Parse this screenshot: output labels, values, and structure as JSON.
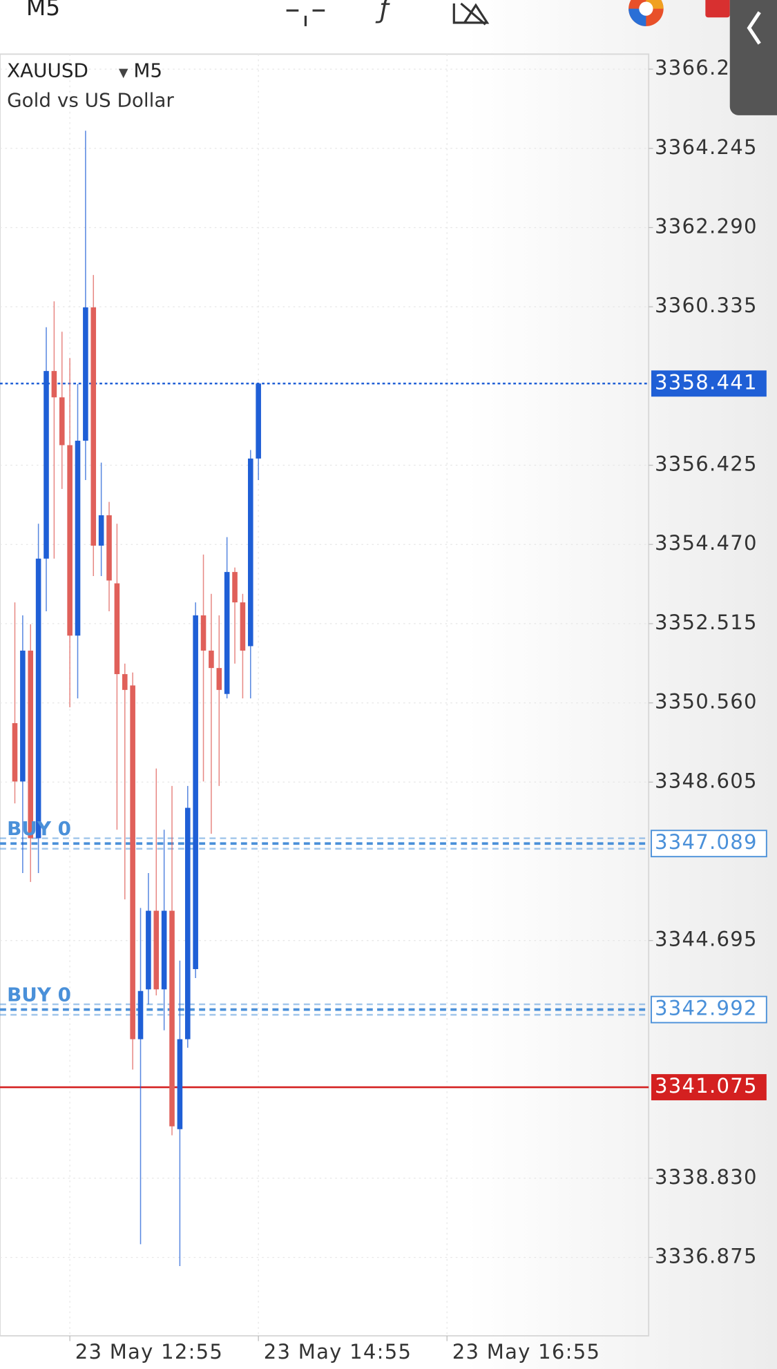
{
  "header": {
    "timeframe": "M5"
  },
  "chart_data": {
    "type": "candlestick",
    "symbol": "XAUUSD",
    "timeframe": "M5",
    "description": "Gold vs US Dollar",
    "up_color": "#1f5fd6",
    "down_color": "#e0605a",
    "grid": true,
    "categories": [
      null,
      null,
      null,
      null,
      null,
      null,
      null,
      "23 May 12:55",
      null,
      null,
      null,
      null,
      null,
      null,
      null,
      null,
      null,
      null,
      null,
      null,
      null,
      null,
      null,
      null,
      null,
      null,
      null,
      null,
      null,
      null,
      null,
      "23 May 14:55",
      null,
      null,
      null,
      null,
      null,
      null,
      null,
      null,
      null,
      null,
      null,
      null,
      null,
      null,
      null,
      null,
      null,
      null,
      null,
      null,
      null,
      null,
      null,
      "23 May 16:55"
    ],
    "open": [
      3350.06,
      3348.62,
      3351.85,
      3347.22,
      3354.12,
      3358.75,
      3358.1,
      3356.92,
      3352.22,
      3357.03,
      3360.32,
      3354.44,
      3355.19,
      3353.51,
      3351.27,
      3350.99,
      3342.26,
      3343.49,
      3345.43,
      3343.49,
      3345.43,
      3340.04,
      3342.26,
      3343.99,
      3352.72,
      3351.85,
      3351.42,
      3350.78,
      3353.79,
      3353.04,
      3351.96,
      3356.59,
      null,
      null,
      null,
      null,
      null,
      null,
      null,
      null,
      null,
      null,
      null,
      null,
      null,
      null,
      null,
      null,
      null,
      null,
      null,
      null,
      null,
      null,
      null,
      null
    ],
    "high": [
      3353.04,
      3352.72,
      3352.5,
      3354.98,
      3359.83,
      3360.47,
      3359.72,
      3359.07,
      3358.43,
      3364.68,
      3361.12,
      3356.49,
      3355.52,
      3354.98,
      3351.53,
      3351.31,
      3345.5,
      3346.36,
      3348.94,
      3347.43,
      3348.51,
      3344.2,
      3348.51,
      3353.04,
      3354.22,
      3353.25,
      3352.72,
      3354.65,
      3353.9,
      3353.25,
      3356.8,
      3358.441,
      null,
      null,
      null,
      null,
      null,
      null,
      null,
      null,
      null,
      null,
      null,
      null,
      null,
      null,
      null,
      null,
      null,
      null,
      null,
      null,
      null,
      null,
      null,
      null
    ],
    "low": [
      3348.08,
      3346.36,
      3346.14,
      3346.36,
      3352.82,
      3354.12,
      3355.84,
      3350.45,
      3350.67,
      3356.06,
      3353.69,
      3353.69,
      3352.82,
      3347.43,
      3345.71,
      3341.51,
      3337.2,
      3343.12,
      3343.34,
      3342.48,
      3339.89,
      3336.66,
      3342.05,
      3343.77,
      3348.62,
      3347.33,
      3348.51,
      3350.67,
      3351.53,
      3350.67,
      3350.67,
      3356.06,
      null,
      null,
      null,
      null,
      null,
      null,
      null,
      null,
      null,
      null,
      null,
      null,
      null,
      null,
      null,
      null,
      null,
      null,
      null,
      null,
      null,
      null,
      null,
      null
    ],
    "close": [
      3348.62,
      3351.85,
      3347.22,
      3354.12,
      3358.75,
      3358.1,
      3356.92,
      3352.22,
      3357.03,
      3360.32,
      3354.44,
      3355.19,
      3353.58,
      3351.27,
      3350.88,
      3342.26,
      3343.45,
      3345.43,
      3343.49,
      3345.43,
      3340.11,
      3342.26,
      3347.97,
      3352.72,
      3351.85,
      3351.42,
      3350.88,
      3353.79,
      3353.04,
      3351.85,
      3356.59,
      3358.441,
      null,
      null,
      null,
      null,
      null,
      null,
      null,
      null,
      null,
      null,
      null,
      null,
      null,
      null,
      null,
      null,
      null,
      null,
      null,
      null,
      null,
      null,
      null,
      null
    ],
    "ylim": [
      3334.94,
      3366.57
    ],
    "yticks": [
      3366.2,
      3364.245,
      {
        "value": 3362.29,
        "label": "3362.290"
      },
      3360.335,
      3356.425,
      {
        "value": 3354.47,
        "label": "3354.470"
      },
      3352.515,
      {
        "value": 3350.56,
        "label": "3350.560"
      },
      3348.605,
      3344.695,
      {
        "value": 3338.83,
        "label": "3338.830"
      },
      3336.875
    ],
    "price_lines": [
      {
        "value": 3358.441,
        "color": "#1f5fd6",
        "style": "dotted"
      },
      {
        "value": 3347.089,
        "text": "BUY 0",
        "color": "#4a90d9",
        "style": "dashed"
      },
      {
        "value": 3342.992,
        "text": "BUY 0",
        "color": "#4a90d9",
        "style": "dashed"
      },
      {
        "value": 3341.075,
        "color": "#d42020",
        "style": "solid"
      }
    ]
  }
}
